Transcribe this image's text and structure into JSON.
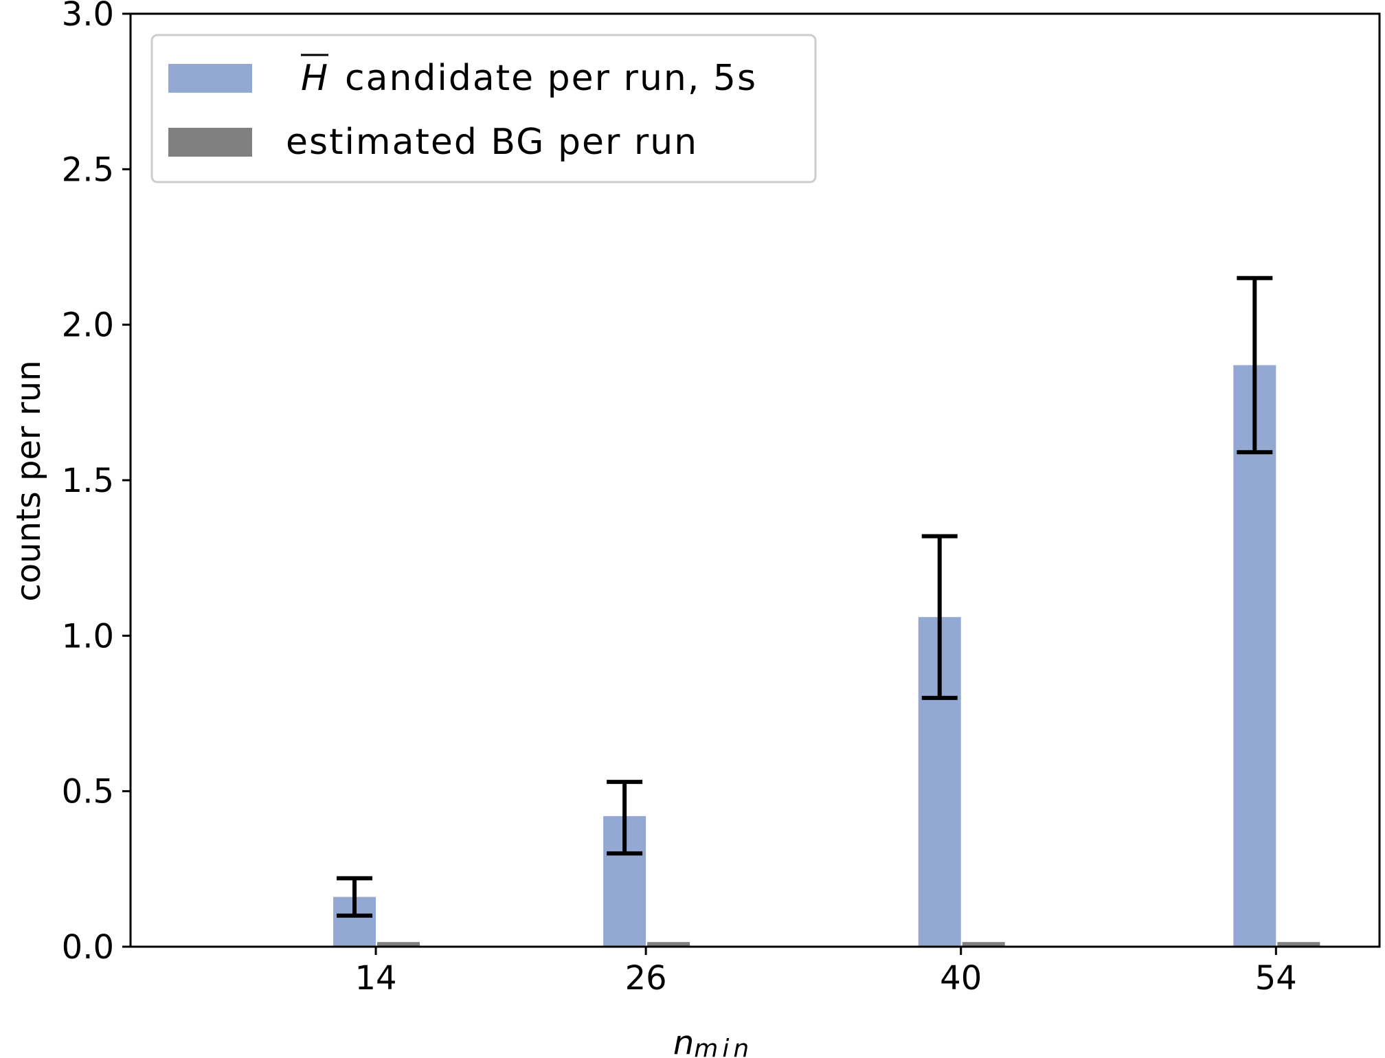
{
  "chart_data": {
    "type": "bar",
    "x": [
      14,
      26,
      40,
      54
    ],
    "x_tick_labels": [
      "14",
      "26",
      "40",
      "54"
    ],
    "y_tick_labels": [
      "0.0",
      "0.5",
      "1.0",
      "1.5",
      "2.0",
      "2.5",
      "3.0"
    ],
    "ylim": [
      0,
      3.0
    ],
    "xlim": [
      3.1,
      58.6
    ],
    "xlabel": "n",
    "xlabel_sub": "min",
    "ylabel": "counts per run",
    "grid": false,
    "legend_position": "top-left",
    "series": [
      {
        "name": "candidate per run, 5s",
        "name_symbol": "H",
        "color": "#94a8d4",
        "values": [
          0.16,
          0.42,
          1.06,
          1.87
        ],
        "error_lower": [
          0.1,
          0.3,
          0.8,
          1.59
        ],
        "error_upper": [
          0.22,
          0.53,
          1.32,
          2.15
        ]
      },
      {
        "name": "estimated BG per run",
        "color": "#808080",
        "values": [
          0.015,
          0.015,
          0.015,
          0.015
        ]
      }
    ]
  }
}
